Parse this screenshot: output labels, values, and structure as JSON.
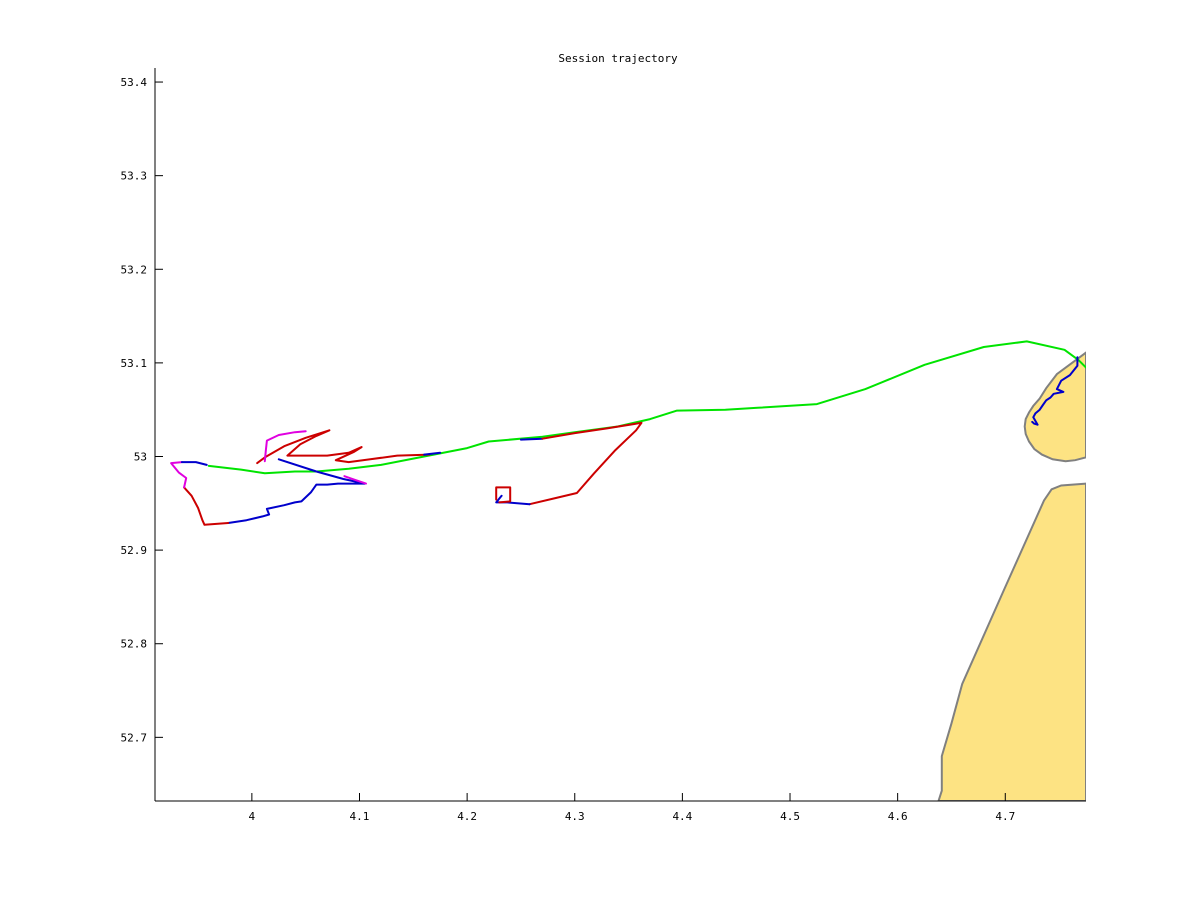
{
  "chart_data": {
    "type": "line",
    "title": "Session trajectory",
    "xlabel": "",
    "ylabel": "",
    "xlim": [
      3.91,
      4.775
    ],
    "ylim": [
      52.632,
      53.415
    ],
    "x_ticks": [
      4,
      4.1,
      4.2,
      4.3,
      4.4,
      4.5,
      4.6,
      4.7
    ],
    "x_tick_labels": [
      "4",
      "4.1",
      "4.2",
      "4.3",
      "4.4",
      "4.5",
      "4.6",
      "4.7"
    ],
    "y_ticks": [
      52.7,
      52.8,
      52.9,
      53,
      53.1,
      53.2,
      53.3,
      53.4
    ],
    "y_tick_labels": [
      "52.7",
      "52.8",
      "52.9",
      "53",
      "53.1",
      "53.2",
      "53.3",
      "53.4"
    ],
    "grid": false,
    "land_color": "#fde383",
    "land_edge_color": "#808080",
    "land": [
      {
        "name": "island",
        "points": [
          [
            4.775,
            53.111
          ],
          [
            4.748,
            53.088
          ],
          [
            4.738,
            53.073
          ],
          [
            4.732,
            53.062
          ],
          [
            4.726,
            53.054
          ],
          [
            4.722,
            53.047
          ],
          [
            4.719,
            53.04
          ],
          [
            4.718,
            53.032
          ],
          [
            4.719,
            53.024
          ],
          [
            4.722,
            53.016
          ],
          [
            4.727,
            53.008
          ],
          [
            4.734,
            53.002
          ],
          [
            4.744,
            52.997
          ],
          [
            4.756,
            52.995
          ],
          [
            4.765,
            52.996
          ],
          [
            4.775,
            52.999
          ]
        ]
      },
      {
        "name": "mainland",
        "points": [
          [
            4.775,
            52.971
          ],
          [
            4.752,
            52.969
          ],
          [
            4.743,
            52.965
          ],
          [
            4.736,
            52.953
          ],
          [
            4.699,
            52.858
          ],
          [
            4.66,
            52.757
          ],
          [
            4.65,
            52.715
          ],
          [
            4.641,
            52.68
          ],
          [
            4.641,
            52.643
          ],
          [
            4.638,
            52.632
          ],
          [
            4.775,
            52.632
          ]
        ]
      }
    ],
    "series": [
      {
        "color": "#00e400",
        "points": [
          [
            4.775,
            53.095
          ],
          [
            4.768,
            53.103
          ],
          [
            4.755,
            53.114
          ],
          [
            4.72,
            53.123
          ],
          [
            4.68,
            53.117
          ],
          [
            4.625,
            53.098
          ],
          [
            4.57,
            53.072
          ],
          [
            4.525,
            53.056
          ],
          [
            4.47,
            53.052
          ],
          [
            4.44,
            53.05
          ],
          [
            4.395,
            53.049
          ],
          [
            4.37,
            53.04
          ],
          [
            4.34,
            53.032
          ],
          [
            4.3,
            53.026
          ],
          [
            4.27,
            53.021
          ],
          [
            4.22,
            53.016
          ],
          [
            4.2,
            53.009
          ],
          [
            4.16,
            53.0
          ],
          [
            4.12,
            52.991
          ],
          [
            4.09,
            52.987
          ],
          [
            4.06,
            52.984
          ],
          [
            4.04,
            52.984
          ],
          [
            4.012,
            52.982
          ],
          [
            3.99,
            52.986
          ],
          [
            3.96,
            52.99
          ]
        ]
      },
      {
        "color": "#cc0000",
        "points": [
          [
            4.005,
            52.993
          ],
          [
            4.012,
            52.999
          ],
          [
            4.03,
            53.011
          ],
          [
            4.05,
            53.02
          ],
          [
            4.072,
            53.028
          ],
          [
            4.06,
            53.022
          ],
          [
            4.045,
            53.013
          ],
          [
            4.033,
            53.001
          ],
          [
            4.05,
            53.001
          ],
          [
            4.07,
            53.001
          ],
          [
            4.09,
            53.004
          ],
          [
            4.102,
            53.01
          ],
          [
            4.095,
            53.005
          ],
          [
            4.078,
            52.996
          ],
          [
            4.09,
            52.994
          ],
          [
            4.11,
            52.997
          ],
          [
            4.135,
            53.001
          ],
          [
            4.165,
            53.002
          ]
        ]
      },
      {
        "color": "#0000cc",
        "points": [
          [
            4.16,
            53.002
          ],
          [
            4.175,
            53.004
          ]
        ]
      },
      {
        "color": "#0000cc",
        "points": [
          [
            4.25,
            53.018
          ],
          [
            4.27,
            53.019
          ]
        ]
      },
      {
        "color": "#cc0000",
        "points": [
          [
            4.27,
            53.019
          ],
          [
            4.3,
            53.025
          ],
          [
            4.33,
            53.03
          ],
          [
            4.362,
            53.036
          ],
          [
            4.357,
            53.028
          ],
          [
            4.337,
            53.006
          ],
          [
            4.318,
            52.982
          ],
          [
            4.302,
            52.961
          ],
          [
            4.28,
            52.955
          ],
          [
            4.258,
            52.949
          ]
        ]
      },
      {
        "color": "#0000cc",
        "points": [
          [
            4.258,
            52.949
          ],
          [
            4.237,
            52.951
          ],
          [
            4.227,
            52.951
          ],
          [
            4.232,
            52.958
          ]
        ]
      },
      {
        "color": "#cc0000",
        "points": [
          [
            4.227,
            52.954
          ],
          [
            4.227,
            52.967
          ],
          [
            4.24,
            52.967
          ],
          [
            4.24,
            52.952
          ],
          [
            4.23,
            52.951
          ]
        ]
      },
      {
        "color": "#0000cc",
        "points": [
          [
            4.025,
            52.997
          ],
          [
            4.06,
            52.984
          ],
          [
            4.085,
            52.976
          ],
          [
            4.105,
            52.971
          ],
          [
            4.08,
            52.971
          ],
          [
            4.07,
            52.97
          ],
          [
            4.06,
            52.97
          ],
          [
            4.055,
            52.962
          ],
          [
            4.046,
            52.952
          ],
          [
            4.04,
            52.951
          ],
          [
            4.03,
            52.948
          ],
          [
            4.014,
            52.944
          ],
          [
            4.016,
            52.938
          ],
          [
            4.01,
            52.936
          ],
          [
            3.995,
            52.932
          ],
          [
            3.978,
            52.929
          ]
        ]
      },
      {
        "color": "#cc0000",
        "points": [
          [
            3.978,
            52.929
          ],
          [
            3.956,
            52.927
          ],
          [
            3.954,
            52.932
          ],
          [
            3.95,
            52.945
          ],
          [
            3.944,
            52.958
          ],
          [
            3.937,
            52.967
          ]
        ]
      },
      {
        "color": "#e000e0",
        "points": [
          [
            3.937,
            52.967
          ],
          [
            3.939,
            52.977
          ],
          [
            3.932,
            52.983
          ],
          [
            3.925,
            52.993
          ],
          [
            3.935,
            52.994
          ]
        ]
      },
      {
        "color": "#0000cc",
        "points": [
          [
            3.935,
            52.994
          ],
          [
            3.948,
            52.994
          ],
          [
            3.958,
            52.991
          ]
        ]
      },
      {
        "color": "#e000e0",
        "points": [
          [
            4.012,
            52.995
          ],
          [
            4.013,
            53.007
          ],
          [
            4.014,
            53.017
          ],
          [
            4.025,
            53.023
          ],
          [
            4.04,
            53.026
          ],
          [
            4.05,
            53.027
          ]
        ]
      },
      {
        "color": "#e000e0",
        "points": [
          [
            4.086,
            52.979
          ],
          [
            4.096,
            52.975
          ],
          [
            4.106,
            52.971
          ]
        ]
      },
      {
        "color": "#0000cc",
        "points": [
          [
            4.767,
            53.106
          ],
          [
            4.767,
            53.097
          ],
          [
            4.76,
            53.087
          ],
          [
            4.752,
            53.081
          ],
          [
            4.748,
            53.072
          ],
          [
            4.754,
            53.069
          ],
          [
            4.745,
            53.067
          ],
          [
            4.742,
            53.063
          ],
          [
            4.738,
            53.06
          ],
          [
            4.735,
            53.055
          ],
          [
            4.732,
            53.05
          ],
          [
            4.728,
            53.046
          ],
          [
            4.726,
            53.042
          ],
          [
            4.73,
            53.034
          ],
          [
            4.727,
            53.035
          ],
          [
            4.725,
            53.037
          ]
        ]
      }
    ]
  }
}
